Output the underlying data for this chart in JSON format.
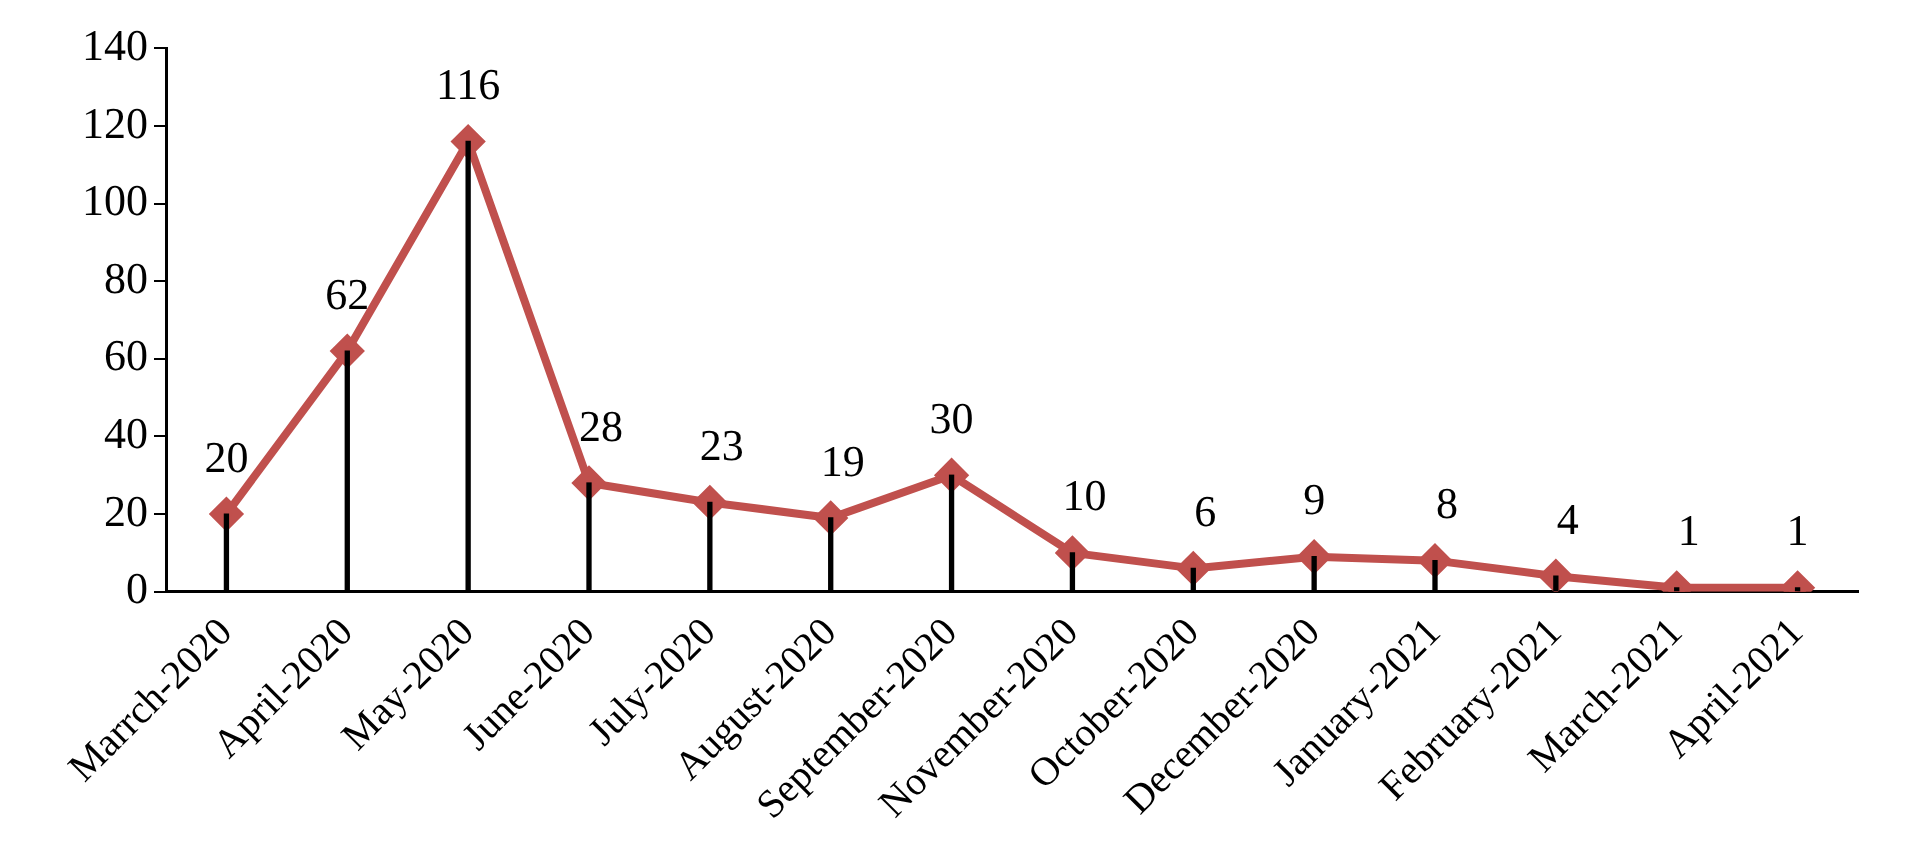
{
  "chart_data": {
    "type": "line",
    "categories": [
      "Marrch-2020",
      "April-2020",
      "May-2020",
      "June-2020",
      "July-2020",
      "August-2020",
      "September-2020",
      "November-2020",
      "October-2020",
      "December-2020",
      "January-2021",
      "February-2021",
      "March-2021",
      "April-2021"
    ],
    "series": [
      {
        "type": "bar",
        "color": "#000000",
        "values": [
          20,
          62,
          116,
          28,
          23,
          19,
          30,
          10,
          6,
          9,
          8,
          4,
          1,
          1
        ]
      },
      {
        "color": "#c0504d",
        "values": [
          20,
          62,
          116,
          28,
          23,
          19,
          30,
          10,
          6,
          9,
          8,
          4,
          1,
          1
        ],
        "data_labels": true
      }
    ],
    "marker": "diamond",
    "line_style": "solid",
    "ylim": [
      0,
      140
    ],
    "yticks": [
      0,
      20,
      40,
      60,
      80,
      100,
      120,
      140
    ],
    "grid": false,
    "legend": false
  }
}
